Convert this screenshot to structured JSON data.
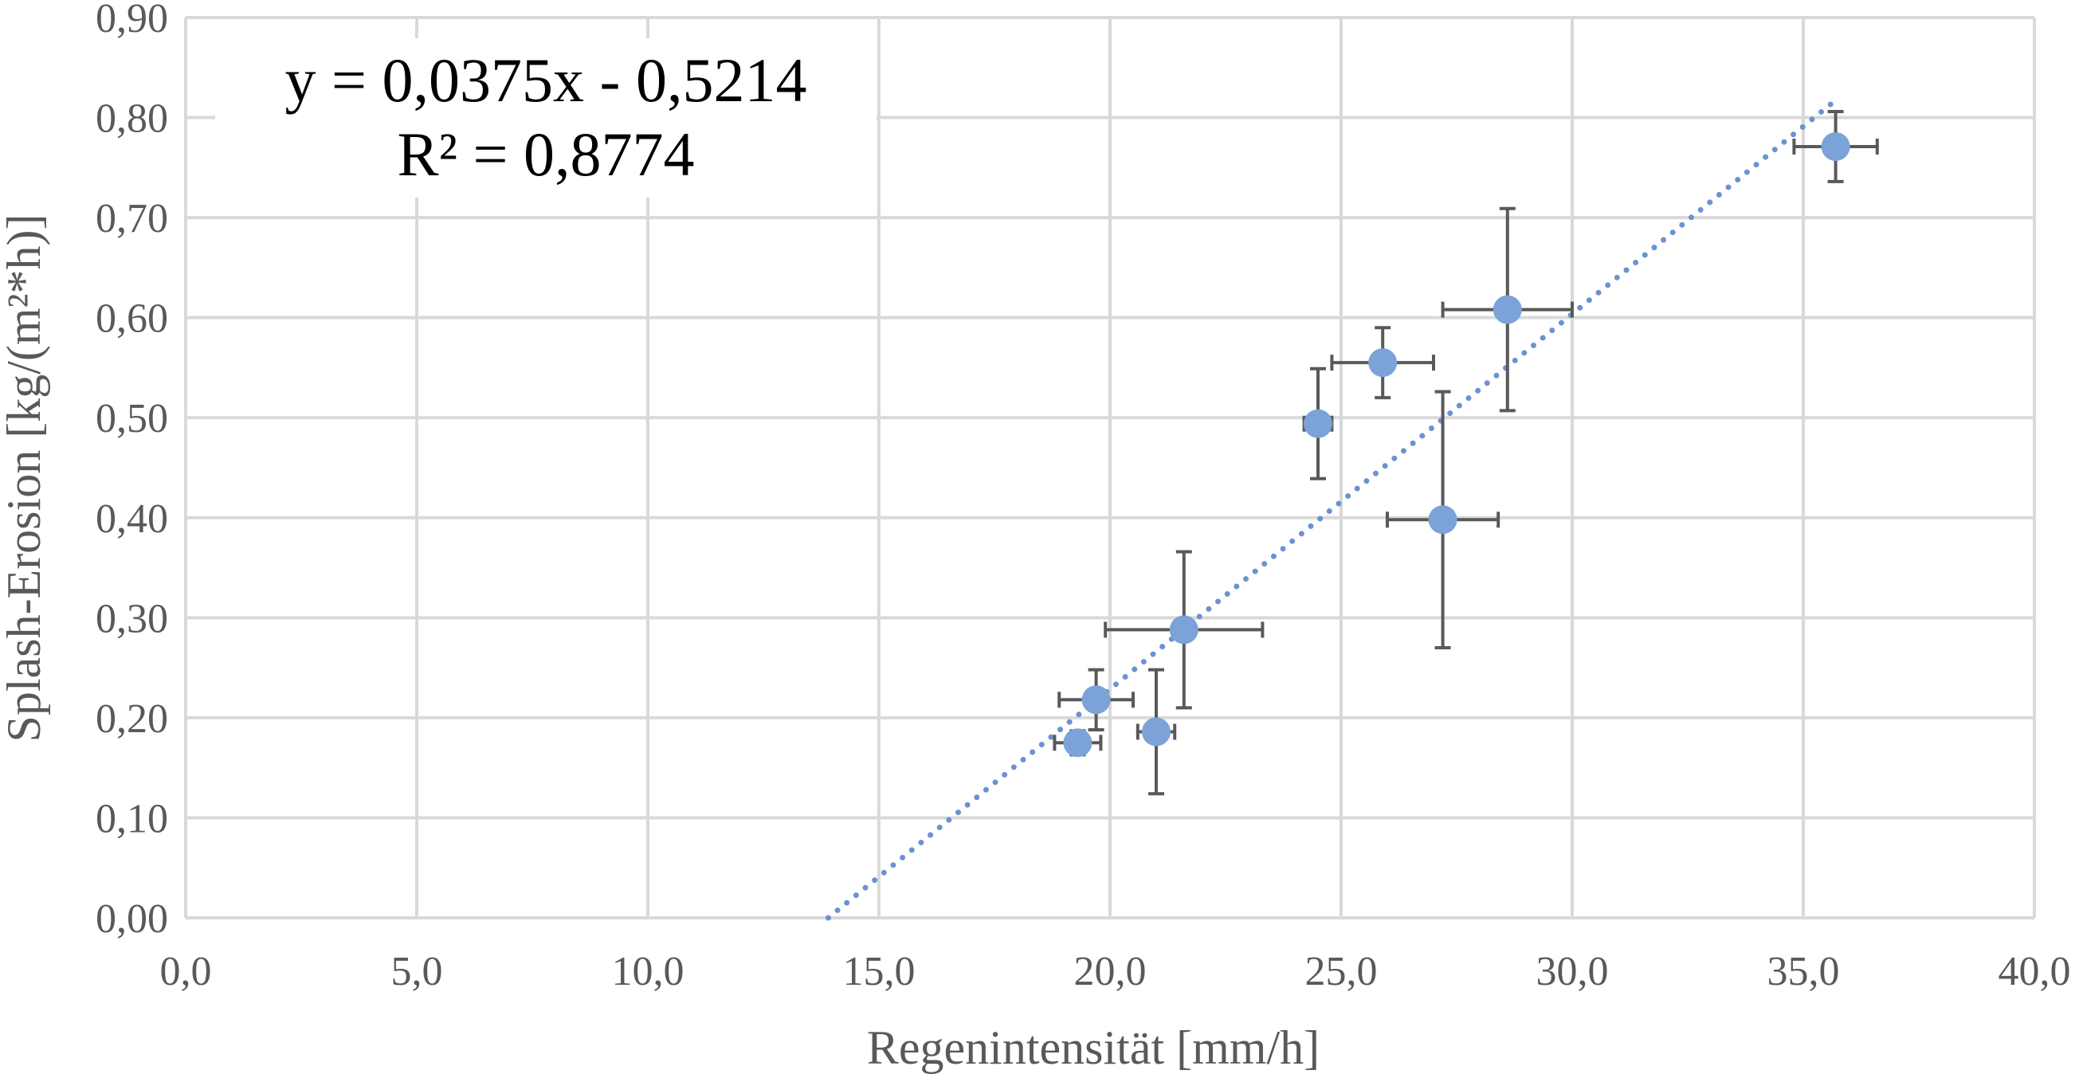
{
  "chart_data": {
    "type": "scatter",
    "xlabel": "Regenintensität [mm/h]",
    "ylabel": "Splash-Erosion [kg/(m²*h)]",
    "xlim": [
      0,
      40
    ],
    "ylim": [
      0,
      0.9
    ],
    "x_ticks": [
      "0,0",
      "5,0",
      "10,0",
      "15,0",
      "20,0",
      "25,0",
      "30,0",
      "35,0",
      "40,0"
    ],
    "y_ticks": [
      "0,00",
      "0,10",
      "0,20",
      "0,30",
      "0,40",
      "0,50",
      "0,60",
      "0,70",
      "0,80",
      "0,90"
    ],
    "grid": true,
    "legend": "none",
    "marker_color": "#7ba3d8",
    "errorbar_color": "#595959",
    "trendline_color": "#6a93cf",
    "equation": "y = 0,0375x - 0,5214",
    "r_squared": "R² = 0,8774",
    "trendline": {
      "slope": 0.0375,
      "intercept": -0.5214
    },
    "points": [
      {
        "x": 19.3,
        "y": 0.175,
        "xerr": 0.5,
        "yerr": 0.012
      },
      {
        "x": 19.7,
        "y": 0.218,
        "xerr": 0.8,
        "yerr": 0.03
      },
      {
        "x": 21.0,
        "y": 0.186,
        "xerr": 0.4,
        "yerr": 0.062
      },
      {
        "x": 21.6,
        "y": 0.288,
        "xerr": 1.7,
        "yerr": 0.078
      },
      {
        "x": 24.5,
        "y": 0.494,
        "xerr": 0.3,
        "yerr": 0.055
      },
      {
        "x": 25.9,
        "y": 0.555,
        "xerr": 1.1,
        "yerr": 0.035
      },
      {
        "x": 27.2,
        "y": 0.398,
        "xerr": 1.2,
        "yerr": 0.128
      },
      {
        "x": 28.6,
        "y": 0.608,
        "xerr": 1.4,
        "yerr": 0.101
      },
      {
        "x": 35.7,
        "y": 0.771,
        "xerr": 0.9,
        "yerr": 0.035
      }
    ]
  }
}
